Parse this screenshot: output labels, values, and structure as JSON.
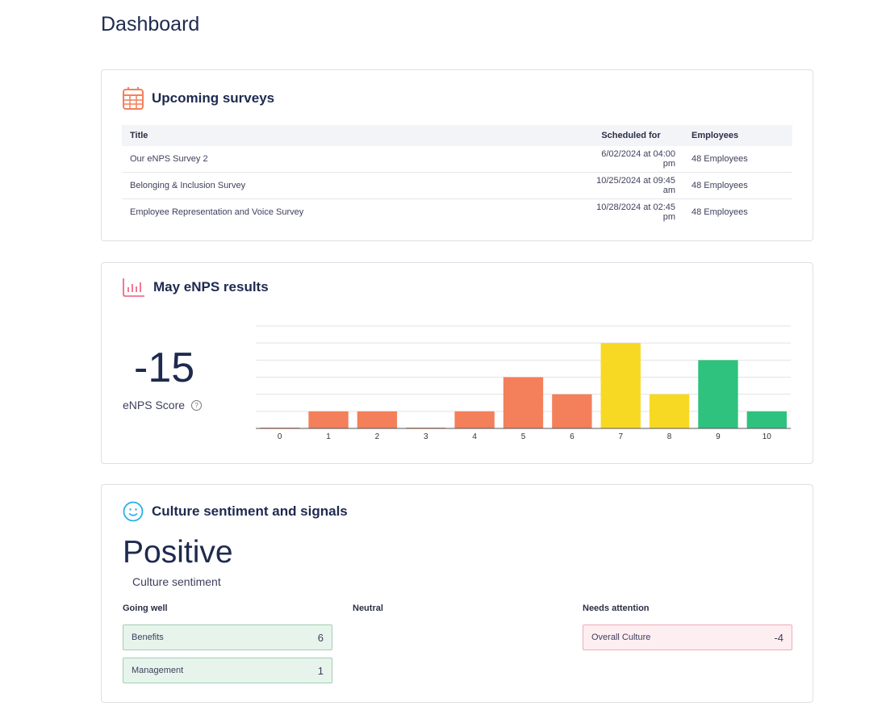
{
  "page_title": "Dashboard",
  "upcoming": {
    "title": "Upcoming surveys",
    "columns": [
      "Title",
      "Scheduled for",
      "Employees"
    ],
    "rows": [
      [
        "Our eNPS Survey 2",
        "6/02/2024 at 04:00 pm",
        "48 Employees"
      ],
      [
        "Belonging & Inclusion Survey",
        "10/25/2024 at 09:45 am",
        "48 Employees"
      ],
      [
        "Employee Representation and Voice Survey",
        "10/28/2024 at 02:45 pm",
        "48 Employees"
      ]
    ]
  },
  "enps": {
    "title": "May eNPS results",
    "score": "-15",
    "score_label": "eNPS Score",
    "help": "?"
  },
  "chart_data": {
    "type": "bar",
    "categories": [
      "0",
      "1",
      "2",
      "3",
      "4",
      "5",
      "6",
      "7",
      "8",
      "9",
      "10"
    ],
    "values": [
      0,
      1,
      1,
      0,
      1,
      3,
      2,
      5,
      2,
      4,
      1
    ],
    "ylim": [
      0,
      6
    ],
    "grid": true,
    "colors": [
      "#f47f5b",
      "#f47f5b",
      "#f47f5b",
      "#f47f5b",
      "#f47f5b",
      "#f47f5b",
      "#f47f5b",
      "#f7d924",
      "#f7d924",
      "#2ec27e",
      "#2ec27e"
    ]
  },
  "culture": {
    "title": "Culture sentiment and signals",
    "sentiment": "Positive",
    "sentiment_label": "Culture sentiment",
    "going_well": {
      "label": "Going well",
      "items": [
        {
          "name": "Benefits",
          "count": "6"
        },
        {
          "name": "Management",
          "count": "1"
        }
      ]
    },
    "neutral": {
      "label": "Neutral"
    },
    "needs_attention": {
      "label": "Needs attention",
      "items": [
        {
          "name": "Overall Culture",
          "count": "-4"
        }
      ]
    }
  }
}
